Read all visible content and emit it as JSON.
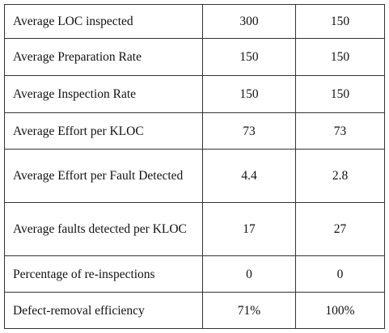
{
  "table": {
    "rows": [
      [
        "Average LOC inspected",
        "300",
        "150"
      ],
      [
        "Average Preparation Rate",
        "150",
        "150"
      ],
      [
        "Average Inspection Rate",
        "150",
        "150"
      ],
      [
        "Average Effort per KLOC",
        "73",
        "73"
      ],
      [
        "Average Effort per Fault Detected",
        "4.4",
        "2.8"
      ],
      [
        "Average faults detected per KLOC",
        "17",
        "27"
      ],
      [
        "Percentage of re-inspections",
        "0",
        "0"
      ],
      [
        "Defect-removal efficiency",
        "71%",
        "100%"
      ]
    ]
  }
}
